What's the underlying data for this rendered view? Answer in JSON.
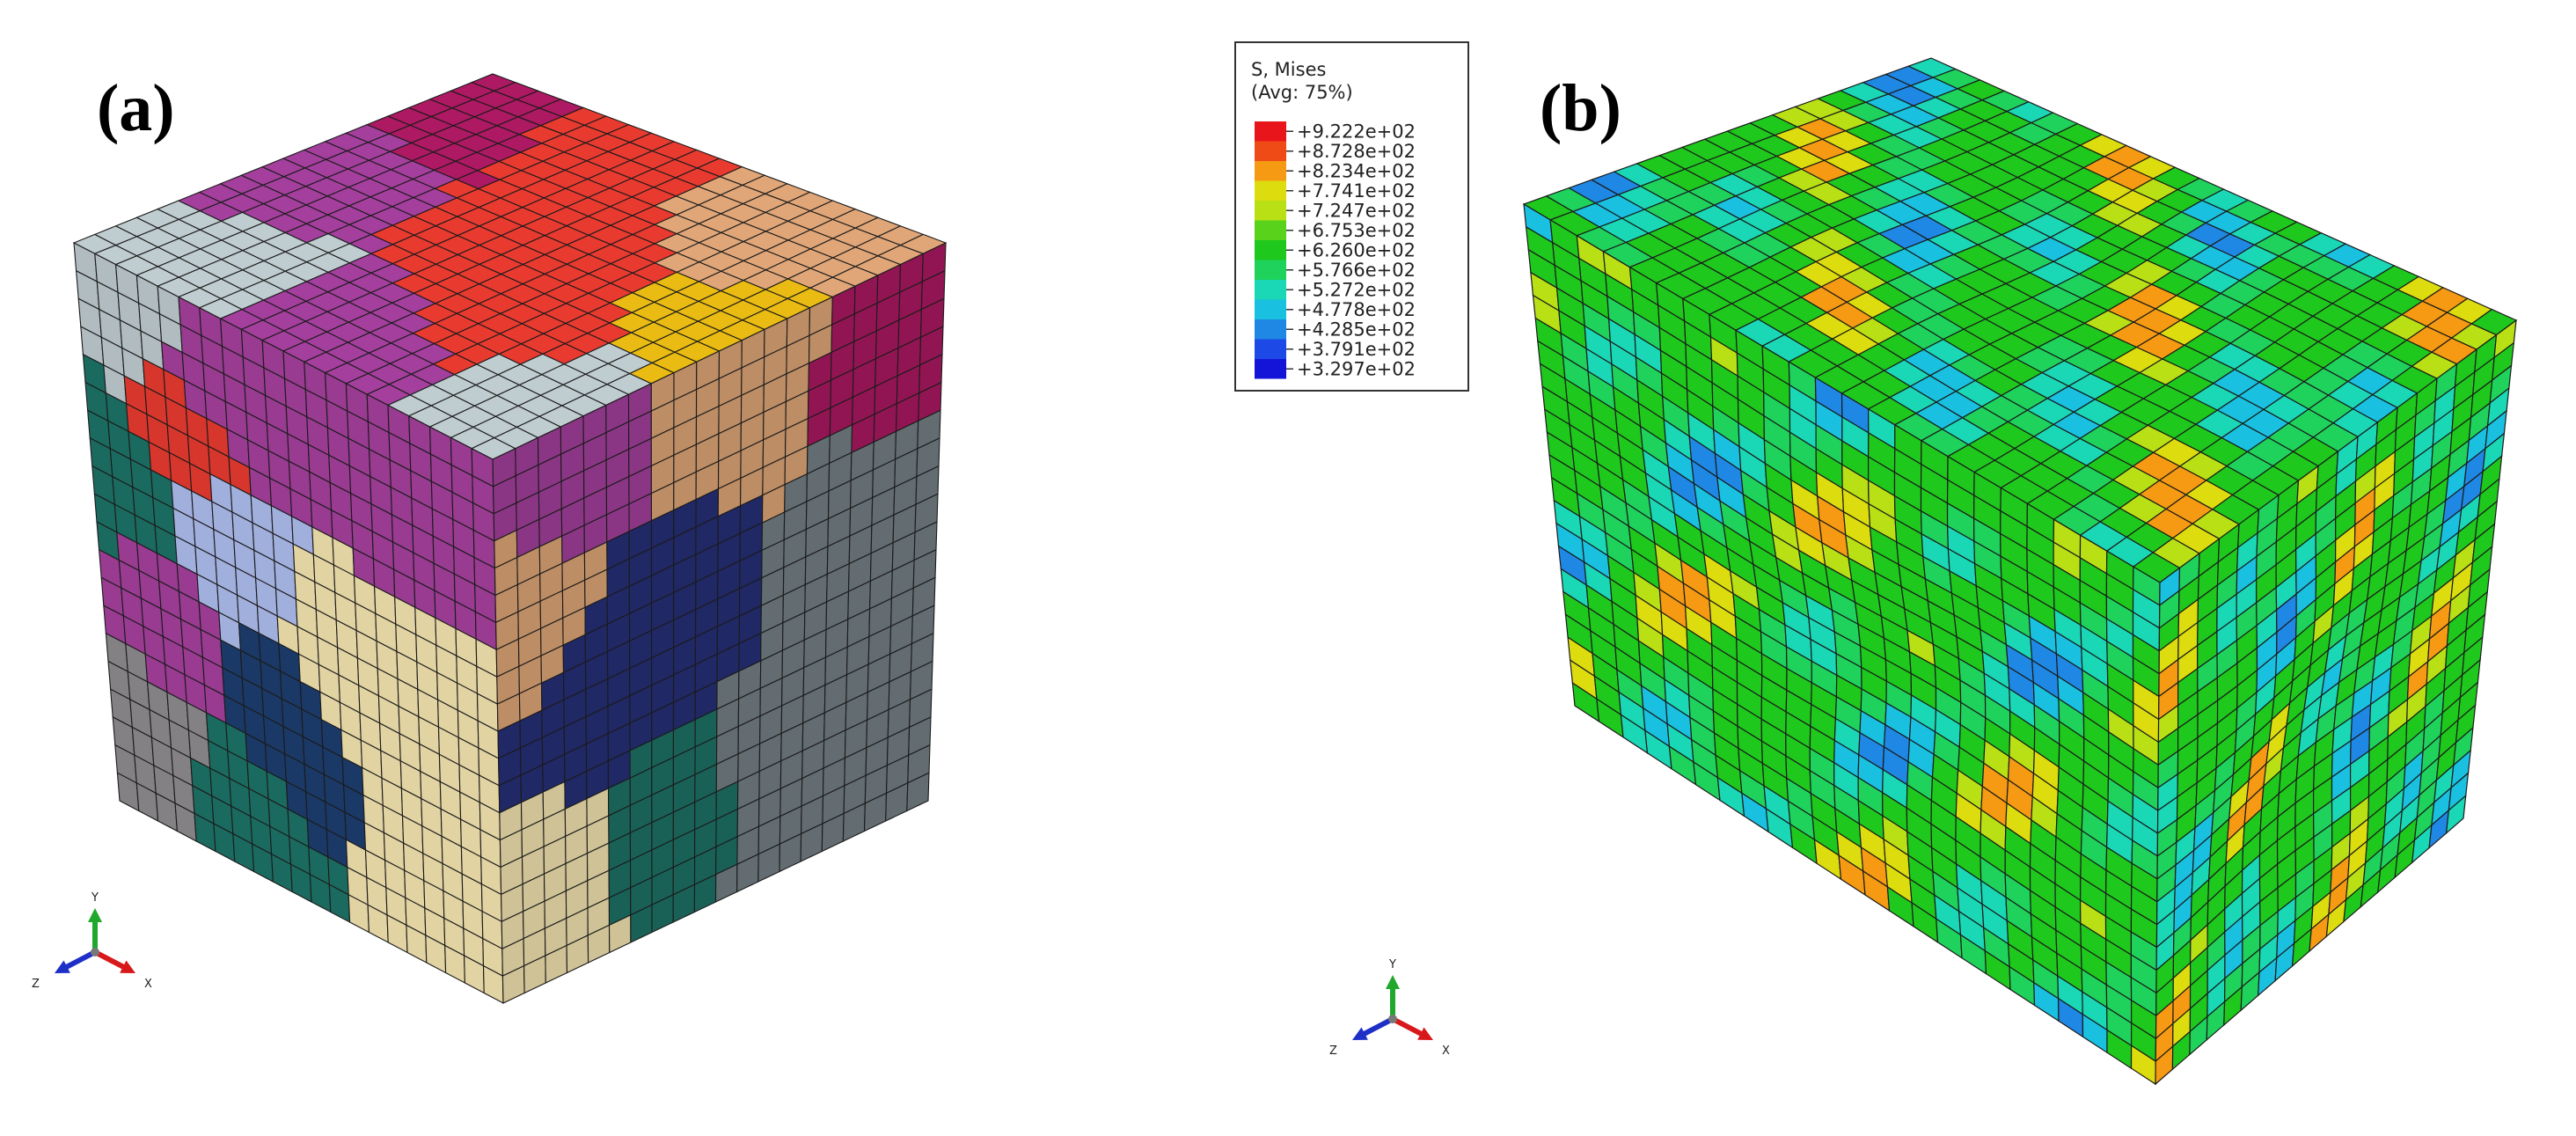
{
  "panels": [
    {
      "label": "(a)"
    },
    {
      "label": "(b)"
    }
  ],
  "triad": {
    "y": "Y",
    "x": "X",
    "z": "Z"
  },
  "legend": {
    "title_line1": "S, Mises",
    "title_line2": "(Avg: 75%)",
    "entries": [
      {
        "value": "+9.222e+02",
        "color": "#e8151a"
      },
      {
        "value": "+8.728e+02",
        "color": "#ef4b16"
      },
      {
        "value": "+8.234e+02",
        "color": "#f59a12"
      },
      {
        "value": "+7.741e+02",
        "color": "#dcdc0e"
      },
      {
        "value": "+7.247e+02",
        "color": "#b8e015"
      },
      {
        "value": "+6.753e+02",
        "color": "#58d21a"
      },
      {
        "value": "+6.260e+02",
        "color": "#1ec81c"
      },
      {
        "value": "+5.766e+02",
        "color": "#1ed25c"
      },
      {
        "value": "+5.272e+02",
        "color": "#1ad7b6"
      },
      {
        "value": "+4.778e+02",
        "color": "#19c0e0"
      },
      {
        "value": "+4.285e+02",
        "color": "#1f88e4"
      },
      {
        "value": "+3.791e+02",
        "color": "#1d4ae6"
      },
      {
        "value": "+3.297e+02",
        "color": "#1414d8"
      }
    ]
  },
  "colors": {
    "grain_palette": [
      "#b8c4c8",
      "#a6185e",
      "#e0b412",
      "#e0382e",
      "#9e3d97",
      "#d7a073",
      "#1c6e63",
      "#a8b6e6",
      "#242d73",
      "#ebdcaa",
      "#6f7b80",
      "#1c3b6a",
      "#8a868a"
    ],
    "fea_green": "#3cc31f",
    "mesh_line": "#1b1b1b",
    "triad_y": "#1fa82c",
    "triad_x": "#d8191c",
    "triad_z": "#1d2fc7"
  }
}
